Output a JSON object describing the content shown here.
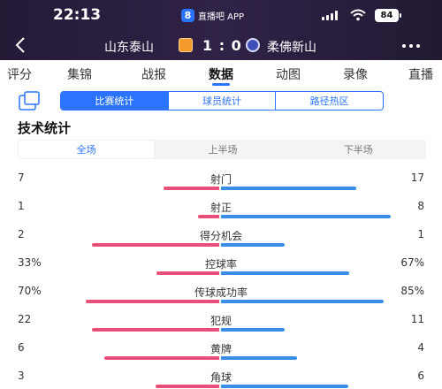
{
  "status_bar": {
    "time": "22:13",
    "app_badge": "8",
    "app_name": "直播吧 APP",
    "battery": "84"
  },
  "match": {
    "home_team": "山东泰山",
    "score": "1 : 0",
    "away_team": "柔佛新山"
  },
  "tabs": [
    {
      "label": "评分"
    },
    {
      "label": "集锦"
    },
    {
      "label": "战报"
    },
    {
      "label": "数据",
      "active": true
    },
    {
      "label": "动图"
    },
    {
      "label": "录像"
    },
    {
      "label": "直播"
    }
  ],
  "views": [
    "比赛统计",
    "球员统计",
    "路径热区"
  ],
  "section_title": "技术统计",
  "periods": [
    "全场",
    "上半场",
    "下半场"
  ],
  "colors": {
    "home": "#ea4f7a",
    "away": "#3a8ee6",
    "accent": "#2b74ff"
  },
  "stats": [
    {
      "name": "射门",
      "home": "7",
      "away": "17",
      "home_share": 0.2917,
      "away_share": 0.7083
    },
    {
      "name": "射正",
      "home": "1",
      "away": "8",
      "home_share": 0.111,
      "away_share": 0.889
    },
    {
      "name": "得分机会",
      "home": "2",
      "away": "1",
      "home_share": 0.667,
      "away_share": 0.333
    },
    {
      "name": "控球率",
      "home": "33%",
      "away": "67%",
      "home_share": 0.33,
      "away_share": 0.67
    },
    {
      "name": "传球成功率",
      "home": "70%",
      "away": "85%",
      "home_share": 0.7,
      "away_share": 0.85
    },
    {
      "name": "犯规",
      "home": "22",
      "away": "11",
      "home_share": 0.667,
      "away_share": 0.333
    },
    {
      "name": "黄牌",
      "home": "6",
      "away": "4",
      "home_share": 0.6,
      "away_share": 0.4
    },
    {
      "name": "角球",
      "home": "3",
      "away": "6",
      "home_share": 0.333,
      "away_share": 0.667
    }
  ]
}
